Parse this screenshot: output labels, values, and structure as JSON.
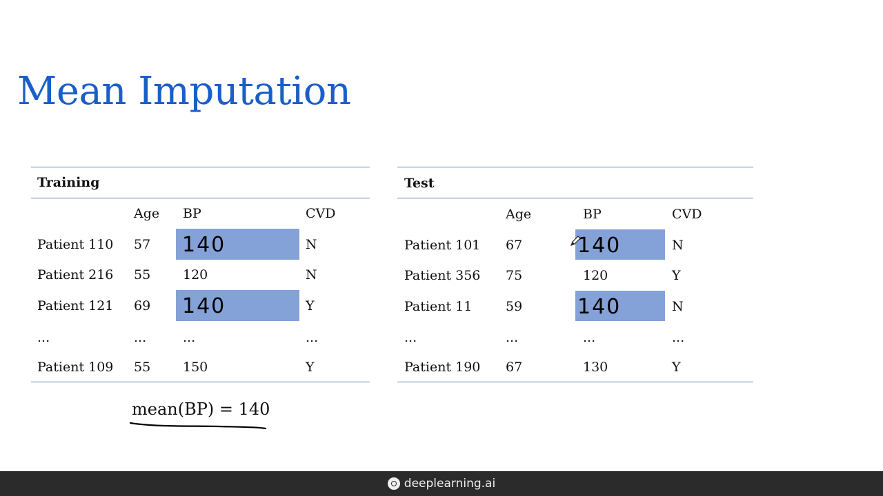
{
  "slide": {
    "title": "Mean Imputation"
  },
  "training": {
    "name": "Training",
    "columns": [
      "",
      "Age",
      "BP",
      "CVD"
    ],
    "rows": [
      {
        "patient": "Patient 110",
        "age": "57",
        "bp": "140",
        "cvd": "N",
        "imputed": true
      },
      {
        "patient": "Patient 216",
        "age": "55",
        "bp": "120",
        "cvd": "N",
        "imputed": false
      },
      {
        "patient": "Patient 121",
        "age": "69",
        "bp": "140",
        "cvd": "Y",
        "imputed": true
      },
      {
        "patient": "...",
        "age": "...",
        "bp": "...",
        "cvd": "...",
        "imputed": false
      },
      {
        "patient": "Patient 109",
        "age": "55",
        "bp": "150",
        "cvd": "Y",
        "imputed": false
      }
    ]
  },
  "test": {
    "name": "Test",
    "columns": [
      "",
      "Age",
      "BP",
      "CVD"
    ],
    "rows": [
      {
        "patient": "Patient 101",
        "age": "67",
        "bp": "140",
        "cvd": "N",
        "imputed": true
      },
      {
        "patient": "Patient 356",
        "age": "75",
        "bp": "120",
        "cvd": "Y",
        "imputed": false
      },
      {
        "patient": "Patient 11",
        "age": "59",
        "bp": "140",
        "cvd": "N",
        "imputed": true
      },
      {
        "patient": "...",
        "age": "...",
        "bp": "...",
        "cvd": "...",
        "imputed": false
      },
      {
        "patient": "Patient 190",
        "age": "67",
        "bp": "130",
        "cvd": "Y",
        "imputed": false
      }
    ]
  },
  "formula": "mean(BP) = 140",
  "footer": {
    "brand": "deeplearning.ai"
  },
  "colors": {
    "title": "#1a5fc8",
    "highlight": "#84a2d8",
    "rule": "#5d7fae",
    "footer_bg": "#2b2b2b"
  }
}
